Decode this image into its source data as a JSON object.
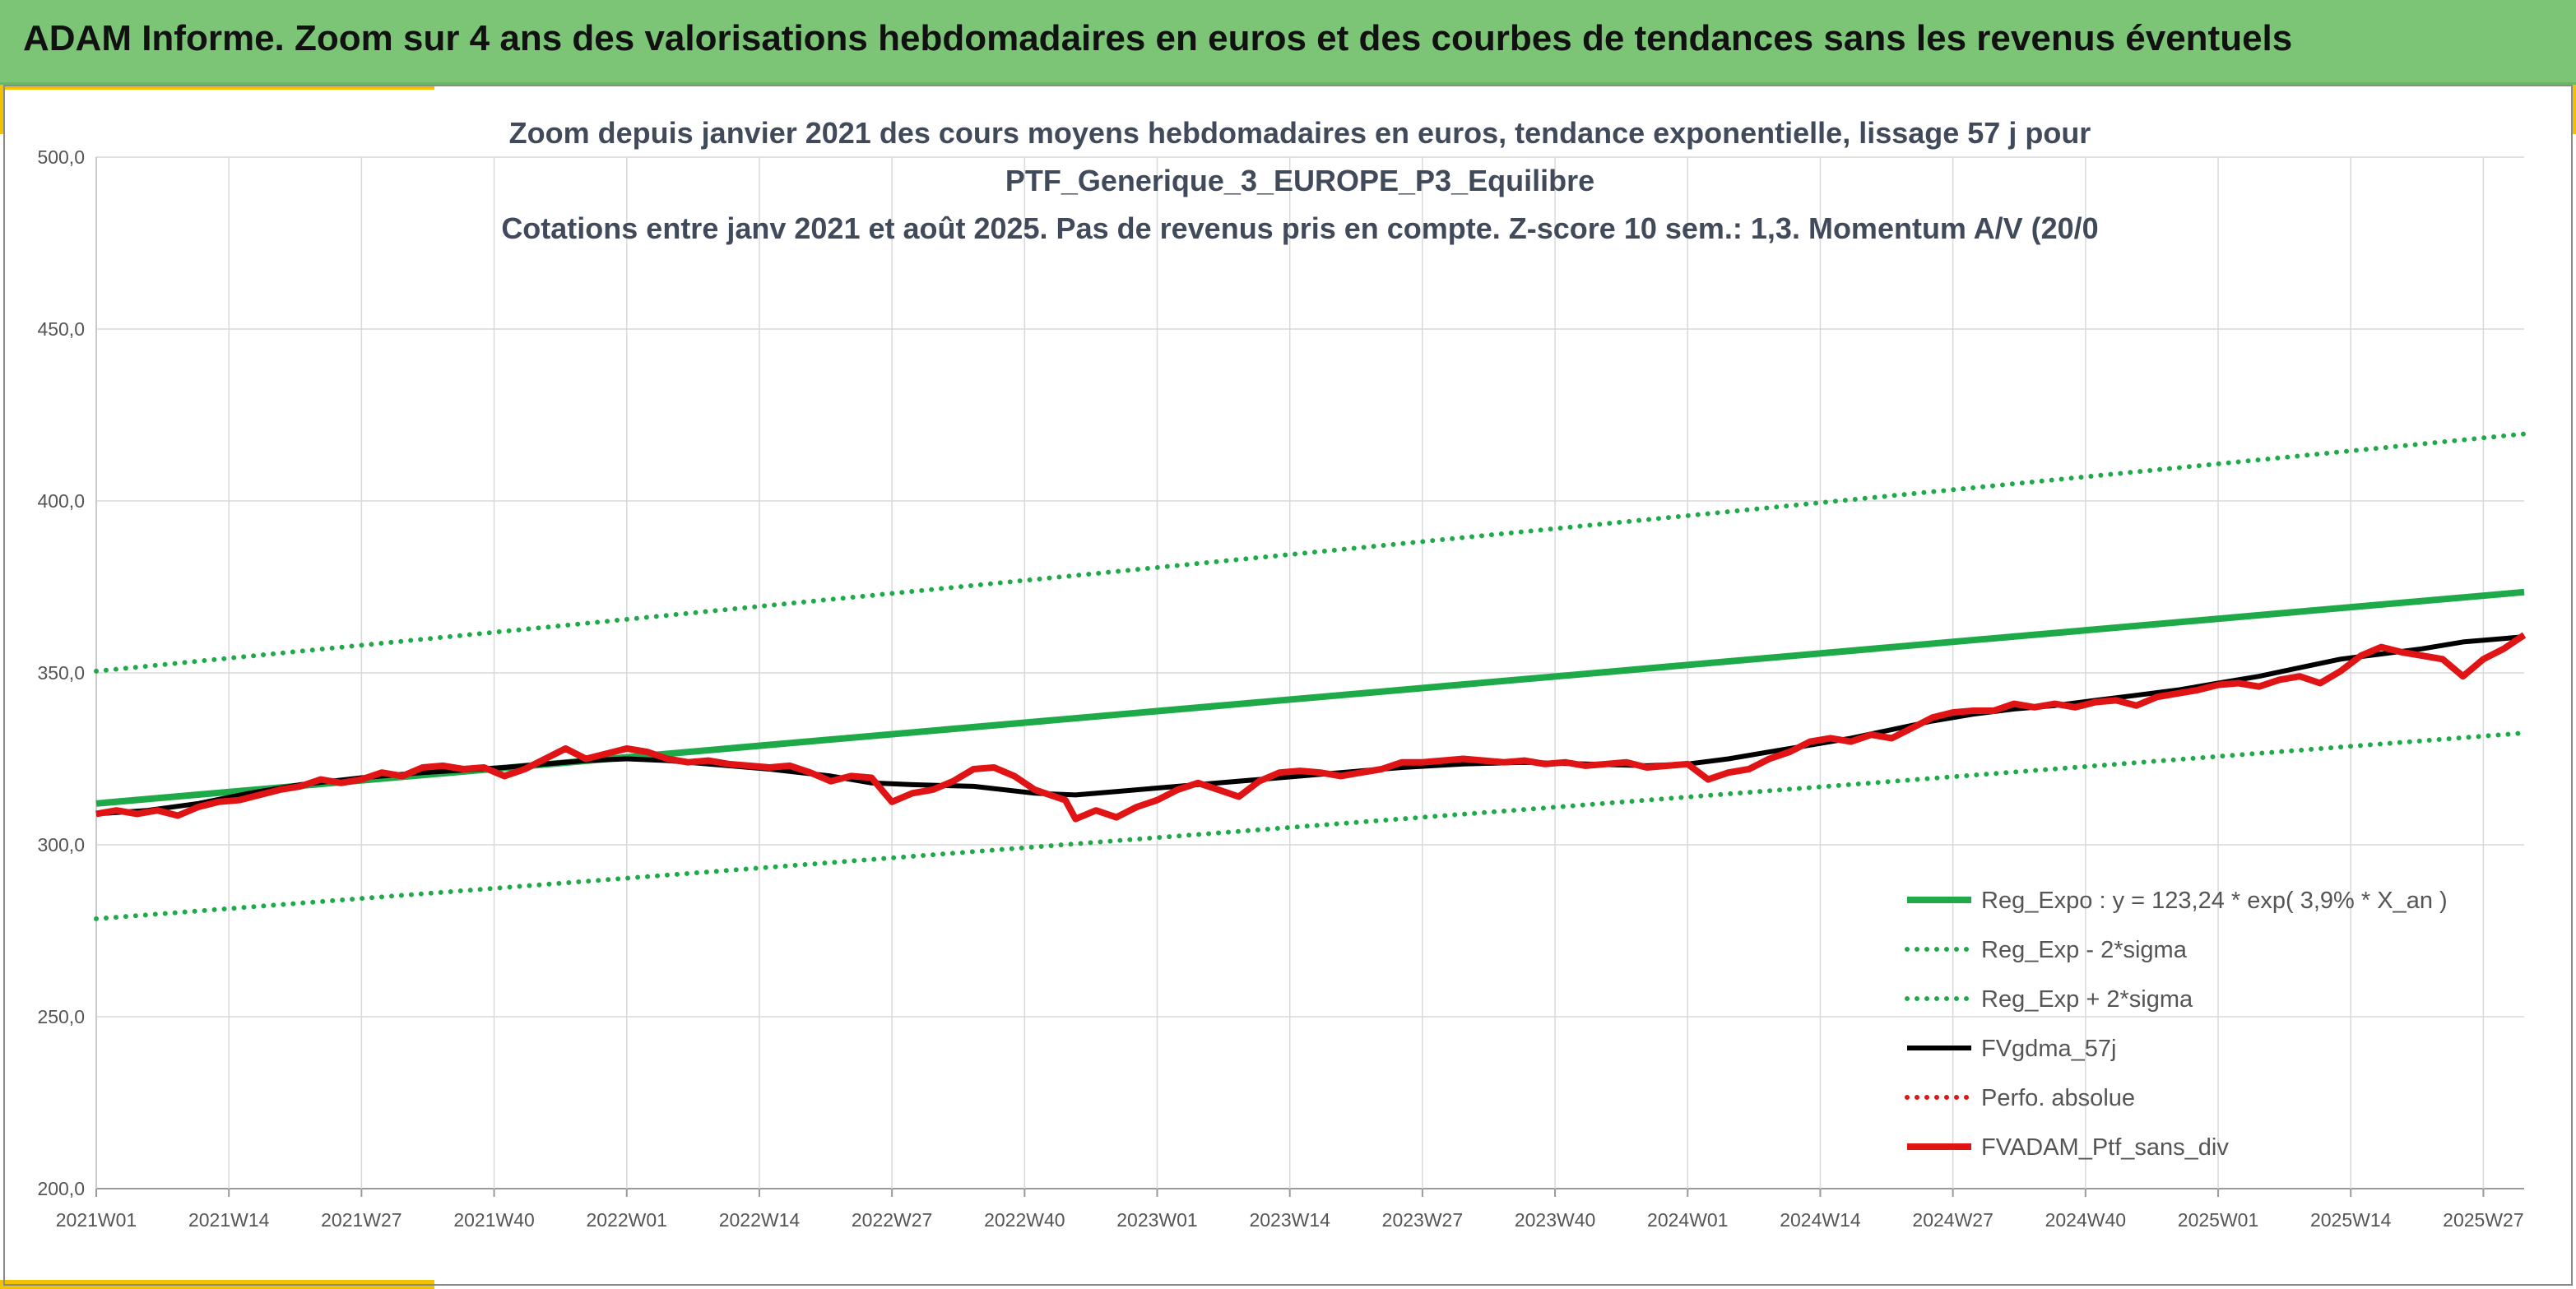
{
  "banner": {
    "title": "ADAM Informe. Zoom sur 4 ans des valorisations hebdomadaires en euros et des courbes de tendances sans les revenus éventuels"
  },
  "colors": {
    "banner_bg": "#7cc576",
    "accent": "#f2c200",
    "reg_expo": "#1faa4a",
    "sigma": "#1faa4a",
    "fvgdma": "#000000",
    "perfo": "#e01414",
    "fvadam": "#e01414"
  },
  "chart_data": {
    "type": "line",
    "title": [
      "Zoom depuis janvier 2021 des cours moyens hebdomadaires en euros, tendance exponentielle, lissage 57 j pour",
      "PTF_Generique_3_EUROPE_P3_Equilibre",
      "Cotations entre janv 2021 et août 2025. Pas de revenus pris en compte. Z-score 10 sem.: 1,3. Momentum A/V (20/0"
    ],
    "xlabel": "",
    "ylabel": "",
    "ylim": [
      200,
      500
    ],
    "yticks": [
      "500,0",
      "450,0",
      "400,0",
      "350,0",
      "300,0",
      "250,0",
      "200,0"
    ],
    "xticks": [
      "2021W01",
      "2021W14",
      "2021W27",
      "2021W40",
      "2022W01",
      "2022W14",
      "2022W27",
      "2022W40",
      "2023W01",
      "2023W14",
      "2023W27",
      "2023W40",
      "2024W01",
      "2024W14",
      "2024W27",
      "2024W40",
      "2025W01",
      "2025W14",
      "2025W27"
    ],
    "x_start": "2021W01",
    "n_weeks": 239,
    "grid": true,
    "legend_position": "bottom-right",
    "series": [
      {
        "name": "Reg_Expo : y = 123,24 * exp( 3,9% *  X_an )",
        "style": "solid-thick",
        "color": "#1faa4a",
        "points": [
          [
            0,
            312
          ],
          [
            238,
            373.5
          ]
        ]
      },
      {
        "name": "Reg_Exp - 2*sigma",
        "style": "dotted",
        "color": "#1faa4a",
        "points": [
          [
            0,
            278.5
          ],
          [
            238,
            332.5
          ]
        ]
      },
      {
        "name": "Reg_Exp + 2*sigma",
        "style": "dotted",
        "color": "#1faa4a",
        "points": [
          [
            0,
            350.5
          ],
          [
            238,
            419.5
          ]
        ]
      },
      {
        "name": "FVgdma_57j",
        "style": "solid",
        "color": "#000000",
        "points": [
          [
            0,
            309
          ],
          [
            5,
            310
          ],
          [
            10,
            312
          ],
          [
            15,
            315
          ],
          [
            20,
            317.5
          ],
          [
            26,
            319.5
          ],
          [
            32,
            321
          ],
          [
            40,
            322.5
          ],
          [
            48,
            324.5
          ],
          [
            52,
            325
          ],
          [
            56,
            324.5
          ],
          [
            60,
            323.5
          ],
          [
            66,
            322
          ],
          [
            72,
            320
          ],
          [
            76,
            318
          ],
          [
            80,
            317.5
          ],
          [
            86,
            317
          ],
          [
            92,
            315
          ],
          [
            96,
            314.5
          ],
          [
            100,
            315.5
          ],
          [
            104,
            316.5
          ],
          [
            110,
            318
          ],
          [
            116,
            319.5
          ],
          [
            122,
            321
          ],
          [
            128,
            322.5
          ],
          [
            134,
            323.5
          ],
          [
            140,
            324
          ],
          [
            146,
            323.5
          ],
          [
            152,
            323
          ],
          [
            156,
            323.5
          ],
          [
            160,
            325
          ],
          [
            164,
            327
          ],
          [
            168,
            329
          ],
          [
            172,
            331
          ],
          [
            176,
            333.5
          ],
          [
            180,
            336
          ],
          [
            184,
            338
          ],
          [
            188,
            339.5
          ],
          [
            192,
            340.5
          ],
          [
            196,
            342
          ],
          [
            200,
            343.5
          ],
          [
            204,
            345
          ],
          [
            208,
            347
          ],
          [
            212,
            349
          ],
          [
            216,
            351.5
          ],
          [
            220,
            354
          ],
          [
            224,
            355.5
          ],
          [
            228,
            357
          ],
          [
            232,
            359
          ],
          [
            236,
            360
          ],
          [
            238,
            360.5
          ]
        ]
      },
      {
        "name": "Perfo. absolue",
        "style": "dotted",
        "color": "#e01414",
        "points": []
      },
      {
        "name": "FVADAM_Ptf_sans_div",
        "style": "solid-thick",
        "color": "#e01414",
        "points": [
          [
            0,
            309
          ],
          [
            2,
            310
          ],
          [
            4,
            309
          ],
          [
            6,
            310
          ],
          [
            8,
            308.5
          ],
          [
            10,
            311
          ],
          [
            12,
            312.5
          ],
          [
            14,
            313
          ],
          [
            16,
            314.5
          ],
          [
            18,
            316
          ],
          [
            20,
            317
          ],
          [
            22,
            319
          ],
          [
            24,
            318
          ],
          [
            26,
            319
          ],
          [
            28,
            321
          ],
          [
            30,
            320
          ],
          [
            32,
            322.5
          ],
          [
            34,
            323
          ],
          [
            36,
            322
          ],
          [
            38,
            322.5
          ],
          [
            40,
            320
          ],
          [
            42,
            322
          ],
          [
            44,
            325
          ],
          [
            46,
            328
          ],
          [
            48,
            325
          ],
          [
            50,
            326.5
          ],
          [
            52,
            328
          ],
          [
            54,
            327
          ],
          [
            56,
            325
          ],
          [
            58,
            324
          ],
          [
            60,
            324.5
          ],
          [
            62,
            323.5
          ],
          [
            64,
            323
          ],
          [
            66,
            322.5
          ],
          [
            68,
            323
          ],
          [
            70,
            321
          ],
          [
            72,
            318.5
          ],
          [
            74,
            320
          ],
          [
            76,
            319.5
          ],
          [
            78,
            312.5
          ],
          [
            80,
            315
          ],
          [
            82,
            316
          ],
          [
            84,
            318.5
          ],
          [
            86,
            322
          ],
          [
            88,
            322.5
          ],
          [
            90,
            320
          ],
          [
            92,
            316
          ],
          [
            94,
            314
          ],
          [
            95,
            313
          ],
          [
            96,
            307.5
          ],
          [
            98,
            310
          ],
          [
            100,
            308
          ],
          [
            102,
            311
          ],
          [
            104,
            313
          ],
          [
            106,
            316
          ],
          [
            108,
            318
          ],
          [
            110,
            316
          ],
          [
            112,
            314
          ],
          [
            114,
            318.5
          ],
          [
            116,
            321
          ],
          [
            118,
            321.5
          ],
          [
            120,
            321
          ],
          [
            122,
            320
          ],
          [
            124,
            321
          ],
          [
            126,
            322
          ],
          [
            128,
            324
          ],
          [
            130,
            324
          ],
          [
            132,
            324.5
          ],
          [
            134,
            325
          ],
          [
            136,
            324.5
          ],
          [
            138,
            324
          ],
          [
            140,
            324.5
          ],
          [
            142,
            323.5
          ],
          [
            144,
            324
          ],
          [
            146,
            323
          ],
          [
            148,
            323.5
          ],
          [
            150,
            324
          ],
          [
            152,
            322.5
          ],
          [
            154,
            323
          ],
          [
            156,
            323.5
          ],
          [
            158,
            319
          ],
          [
            160,
            321
          ],
          [
            162,
            322
          ],
          [
            164,
            325
          ],
          [
            166,
            327
          ],
          [
            168,
            330
          ],
          [
            170,
            331
          ],
          [
            172,
            330
          ],
          [
            174,
            332
          ],
          [
            176,
            331
          ],
          [
            178,
            334
          ],
          [
            180,
            337
          ],
          [
            182,
            338.5
          ],
          [
            184,
            339
          ],
          [
            186,
            339
          ],
          [
            188,
            341
          ],
          [
            190,
            340
          ],
          [
            192,
            341
          ],
          [
            194,
            340
          ],
          [
            196,
            341.5
          ],
          [
            198,
            342
          ],
          [
            200,
            340.5
          ],
          [
            202,
            343
          ],
          [
            204,
            344
          ],
          [
            206,
            345
          ],
          [
            208,
            346.5
          ],
          [
            210,
            347
          ],
          [
            212,
            346
          ],
          [
            214,
            348
          ],
          [
            216,
            349
          ],
          [
            218,
            347
          ],
          [
            220,
            350.5
          ],
          [
            222,
            355
          ],
          [
            224,
            357.5
          ],
          [
            226,
            356
          ],
          [
            228,
            355
          ],
          [
            230,
            354
          ],
          [
            232,
            349
          ],
          [
            234,
            354
          ],
          [
            236,
            357
          ],
          [
            238,
            361
          ]
        ]
      }
    ]
  }
}
